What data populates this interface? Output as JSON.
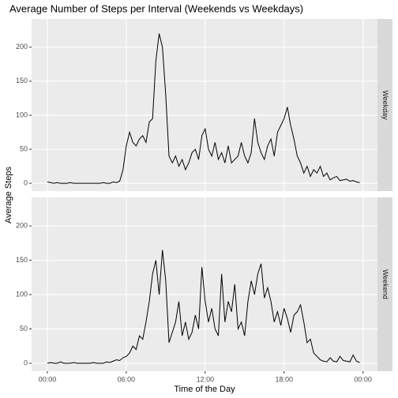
{
  "chart_data": {
    "type": "line",
    "title": "Average Number of Steps per Interval (Weekends vs Weekdays)",
    "x_label": "Time of the Day",
    "y_label": "Average Steps",
    "x": [
      0,
      0.25,
      0.5,
      0.75,
      1,
      1.25,
      1.5,
      1.75,
      2,
      2.25,
      2.5,
      2.75,
      3,
      3.25,
      3.5,
      3.75,
      4,
      4.25,
      4.5,
      4.75,
      5,
      5.25,
      5.5,
      5.75,
      6,
      6.25,
      6.5,
      6.75,
      7,
      7.25,
      7.5,
      7.75,
      8,
      8.25,
      8.5,
      8.75,
      9,
      9.25,
      9.5,
      9.75,
      10,
      10.25,
      10.5,
      10.75,
      11,
      11.25,
      11.5,
      11.75,
      12,
      12.25,
      12.5,
      12.75,
      13,
      13.25,
      13.5,
      13.75,
      14,
      14.25,
      14.5,
      14.75,
      15,
      15.25,
      15.5,
      15.75,
      16,
      16.25,
      16.5,
      16.75,
      17,
      17.25,
      17.5,
      17.75,
      18,
      18.25,
      18.5,
      18.75,
      19,
      19.25,
      19.5,
      19.75,
      20,
      20.25,
      20.5,
      20.75,
      21,
      21.25,
      21.5,
      21.75,
      22,
      22.25,
      22.5,
      22.75,
      23,
      23.25,
      23.5,
      23.75
    ],
    "xlim": [
      -1.2,
      25.1
    ],
    "xticks": [
      {
        "value": 0,
        "label": "00:00"
      },
      {
        "value": 6,
        "label": "06:00"
      },
      {
        "value": 12,
        "label": "12:00"
      },
      {
        "value": 18,
        "label": "18:00"
      },
      {
        "value": 24,
        "label": "00:00"
      }
    ],
    "ylim": [
      -11.5,
      241.5
    ],
    "yticks": [
      0,
      50,
      100,
      150,
      200
    ],
    "grid": true,
    "series": [
      {
        "name": "Weekday",
        "color": "#000000",
        "values": [
          2,
          1,
          0,
          1,
          0,
          0,
          0,
          1,
          0,
          0,
          0,
          0,
          0,
          0,
          0,
          0,
          0,
          1,
          0,
          0,
          2,
          1,
          3,
          20,
          55,
          75,
          60,
          55,
          65,
          70,
          60,
          90,
          95,
          180,
          220,
          200,
          130,
          40,
          30,
          40,
          25,
          35,
          20,
          30,
          45,
          50,
          35,
          70,
          80,
          50,
          40,
          60,
          35,
          45,
          30,
          55,
          30,
          35,
          40,
          60,
          40,
          30,
          45,
          95,
          60,
          45,
          35,
          55,
          65,
          40,
          75,
          85,
          95,
          112,
          85,
          65,
          40,
          30,
          15,
          25,
          10,
          20,
          15,
          25,
          10,
          15,
          5,
          8,
          10,
          4,
          5,
          6,
          3,
          4,
          2,
          1
        ]
      },
      {
        "name": "Weekend",
        "color": "#000000",
        "values": [
          0,
          1,
          0,
          0,
          2,
          0,
          0,
          0,
          1,
          0,
          0,
          0,
          0,
          0,
          1,
          0,
          0,
          0,
          2,
          1,
          3,
          5,
          4,
          8,
          10,
          15,
          25,
          20,
          40,
          35,
          60,
          90,
          130,
          150,
          100,
          165,
          120,
          30,
          45,
          60,
          90,
          40,
          60,
          35,
          45,
          70,
          50,
          140,
          90,
          60,
          80,
          50,
          40,
          130,
          60,
          90,
          75,
          115,
          50,
          60,
          40,
          90,
          120,
          100,
          130,
          145,
          95,
          110,
          90,
          60,
          75,
          55,
          80,
          65,
          45,
          70,
          75,
          85,
          60,
          30,
          35,
          15,
          10,
          5,
          3,
          2,
          8,
          3,
          2,
          10,
          4,
          3,
          2,
          12,
          3,
          1
        ]
      }
    ]
  }
}
